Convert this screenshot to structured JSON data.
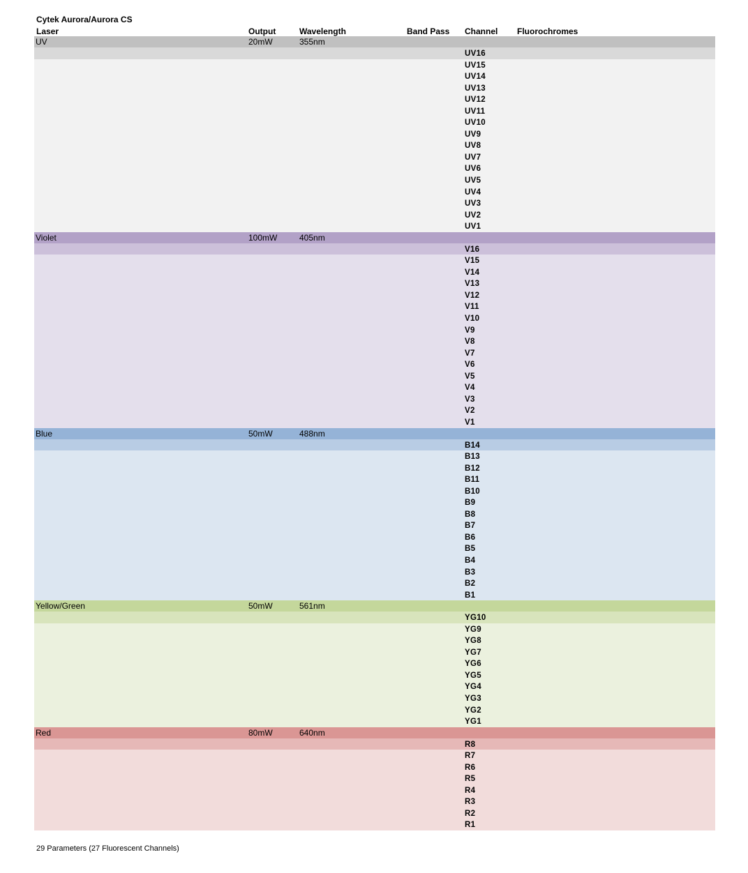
{
  "title": "Cytek Aurora/Aurora CS",
  "columns": {
    "laser": "Laser",
    "output": "Output",
    "wavelength": "Wavelength",
    "band_pass": "Band Pass",
    "channel": "Channel",
    "fluorochromes": "Fluorochromes"
  },
  "lasers": [
    {
      "name": "UV",
      "output": "20mW",
      "wavelength": "355nm",
      "colors": {
        "header": "#c0c0c0",
        "first": "#d9d9d9",
        "body": "#f2f2f2"
      },
      "channels": [
        "UV16",
        "UV15",
        "UV14",
        "UV13",
        "UV12",
        "UV11",
        "UV10",
        "UV9",
        "UV8",
        "UV7",
        "UV6",
        "UV5",
        "UV4",
        "UV3",
        "UV2",
        "UV1"
      ]
    },
    {
      "name": "Violet",
      "output": "100mW",
      "wavelength": "405nm",
      "colors": {
        "header": "#b2a1c7",
        "first": "#ccc0da",
        "body": "#e4dfec"
      },
      "channels": [
        "V16",
        "V15",
        "V14",
        "V13",
        "V12",
        "V11",
        "V10",
        "V9",
        "V8",
        "V7",
        "V6",
        "V5",
        "V4",
        "V3",
        "V2",
        "V1"
      ]
    },
    {
      "name": "Blue",
      "output": "50mW",
      "wavelength": "488nm",
      "colors": {
        "header": "#95b3d7",
        "first": "#b8cce4",
        "body": "#dce6f1"
      },
      "channels": [
        "B14",
        "B13",
        "B12",
        "B11",
        "B10",
        "B9",
        "B8",
        "B7",
        "B6",
        "B5",
        "B4",
        "B3",
        "B2",
        "B1"
      ]
    },
    {
      "name": "Yellow/Green",
      "output": "50mW",
      "wavelength": "561nm",
      "colors": {
        "header": "#c4d79b",
        "first": "#d8e4bc",
        "body": "#ebf1de"
      },
      "channels": [
        "YG10",
        "YG9",
        "YG8",
        "YG7",
        "YG6",
        "YG5",
        "YG4",
        "YG3",
        "YG2",
        "YG1"
      ]
    },
    {
      "name": "Red",
      "output": "80mW",
      "wavelength": "640nm",
      "colors": {
        "header": "#da9694",
        "first": "#e6b8b7",
        "body": "#f2dcdb"
      },
      "channels": [
        "R8",
        "R7",
        "R6",
        "R5",
        "R4",
        "R3",
        "R2",
        "R1"
      ]
    }
  ],
  "footer": "29 Parameters (27 Fluorescent Channels)"
}
